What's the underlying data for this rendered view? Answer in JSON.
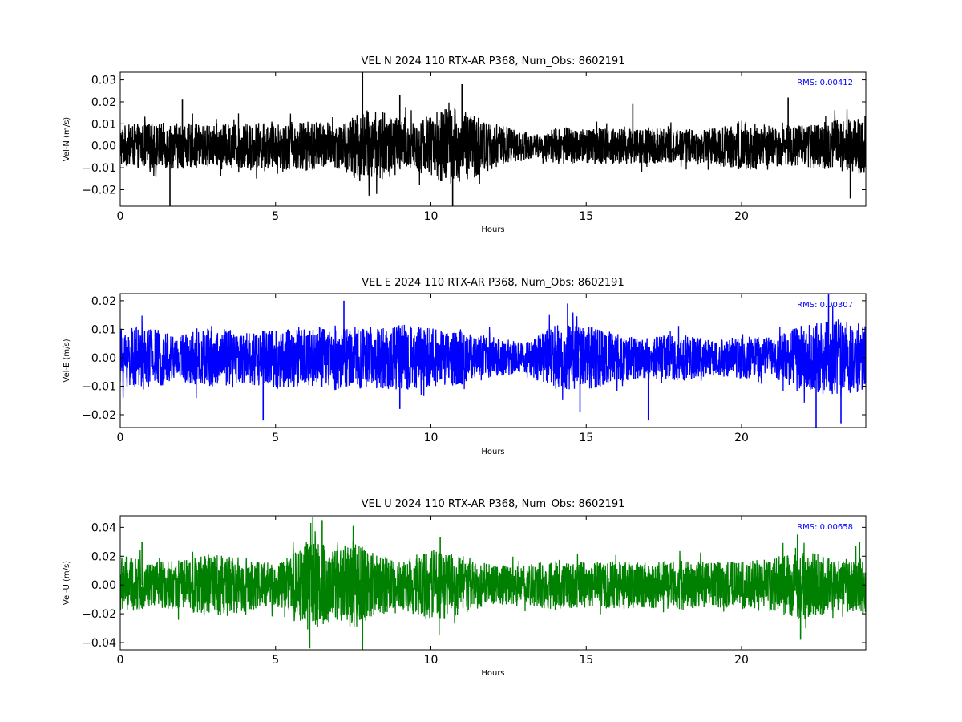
{
  "chart_data": [
    {
      "type": "line",
      "title": "VEL N 2024 110 RTX-AR  P368, Num_Obs: 8602191",
      "xlabel": "Hours",
      "ylabel": "Vel-N (m/s)",
      "xlim": [
        0,
        24
      ],
      "ylim": [
        -0.0275,
        0.0335
      ],
      "xticks": [
        0,
        5,
        10,
        15,
        20
      ],
      "yticks": [
        -0.02,
        -0.01,
        0.0,
        0.01,
        0.02,
        0.03
      ],
      "ytick_labels": [
        "−0.02",
        "−0.01",
        "0.00",
        "0.01",
        "0.02",
        "0.03"
      ],
      "xtick_labels": [
        "0",
        "5",
        "10",
        "15",
        "20"
      ],
      "color": "#000000",
      "annotation": "RMS:  0.00412",
      "annotation_color": "#0000ff",
      "series": [
        {
          "values_desc": "noise envelope (hours, typical max abs)",
          "envelope": [
            [
              0,
              0.009
            ],
            [
              1,
              0.01
            ],
            [
              2,
              0.01
            ],
            [
              3,
              0.009
            ],
            [
              4,
              0.01
            ],
            [
              5,
              0.01
            ],
            [
              6,
              0.011
            ],
            [
              7,
              0.01
            ],
            [
              7.4,
              0.011
            ],
            [
              7.6,
              0.016
            ],
            [
              8.5,
              0.015
            ],
            [
              9.5,
              0.011
            ],
            [
              10.5,
              0.017
            ],
            [
              11.2,
              0.015
            ],
            [
              12,
              0.01
            ],
            [
              12.8,
              0.007
            ],
            [
              13.5,
              0.005
            ],
            [
              14,
              0.008
            ],
            [
              15,
              0.008
            ],
            [
              16,
              0.008
            ],
            [
              17,
              0.008
            ],
            [
              18,
              0.007
            ],
            [
              19,
              0.008
            ],
            [
              20,
              0.011
            ],
            [
              21,
              0.009
            ],
            [
              22,
              0.009
            ],
            [
              23,
              0.011
            ],
            [
              24,
              0.013
            ]
          ],
          "spikes": [
            [
              1.6,
              -0.0275
            ],
            [
              7.8,
              0.0335
            ],
            [
              10.7,
              -0.0275
            ],
            [
              11.0,
              0.028
            ],
            [
              2.0,
              0.021
            ],
            [
              9.0,
              0.023
            ],
            [
              23.5,
              -0.024
            ],
            [
              16.5,
              0.019
            ],
            [
              21.5,
              0.022
            ]
          ]
        }
      ]
    },
    {
      "type": "line",
      "title": "VEL E 2024 110 RTX-AR  P368, Num_Obs: 8602191",
      "xlabel": "Hours",
      "ylabel": "Vel-E (m/s)",
      "xlim": [
        0,
        24
      ],
      "ylim": [
        -0.0245,
        0.0225
      ],
      "xticks": [
        0,
        5,
        10,
        15,
        20
      ],
      "yticks": [
        -0.02,
        -0.01,
        0.0,
        0.01,
        0.02
      ],
      "ytick_labels": [
        "−0.02",
        "−0.01",
        "0.00",
        "0.01",
        "0.02"
      ],
      "xtick_labels": [
        "0",
        "5",
        "10",
        "15",
        "20"
      ],
      "color": "#0000ff",
      "annotation": "RMS:  0.00307",
      "annotation_color": "#0000ff",
      "series": [
        {
          "values_desc": "noise envelope (hours, typical max abs)",
          "envelope": [
            [
              0,
              0.01
            ],
            [
              1,
              0.01
            ],
            [
              2,
              0.008
            ],
            [
              2.5,
              0.01
            ],
            [
              3,
              0.01
            ],
            [
              4,
              0.009
            ],
            [
              5,
              0.01
            ],
            [
              6,
              0.01
            ],
            [
              7,
              0.011
            ],
            [
              8,
              0.01
            ],
            [
              9,
              0.011
            ],
            [
              10,
              0.01
            ],
            [
              11,
              0.009
            ],
            [
              12,
              0.007
            ],
            [
              13,
              0.005
            ],
            [
              14,
              0.011
            ],
            [
              15,
              0.011
            ],
            [
              16,
              0.008
            ],
            [
              17,
              0.007
            ],
            [
              18,
              0.008
            ],
            [
              19,
              0.006
            ],
            [
              20,
              0.007
            ],
            [
              21,
              0.007
            ],
            [
              22,
              0.011
            ],
            [
              23,
              0.013
            ],
            [
              24,
              0.011
            ]
          ],
          "spikes": [
            [
              4.6,
              -0.022
            ],
            [
              7.2,
              0.02
            ],
            [
              14.4,
              0.019
            ],
            [
              14.8,
              -0.019
            ],
            [
              17.0,
              -0.022
            ],
            [
              22.4,
              -0.0245
            ],
            [
              22.8,
              0.0225
            ],
            [
              23.2,
              -0.023
            ],
            [
              9.0,
              -0.018
            ]
          ]
        }
      ]
    },
    {
      "type": "line",
      "title": "VEL U 2024 110 RTX-AR  P368, Num_Obs: 8602191",
      "xlabel": "Hours",
      "ylabel": "Vel-U (m/s)",
      "xlim": [
        0,
        24
      ],
      "ylim": [
        -0.045,
        0.048
      ],
      "xticks": [
        0,
        5,
        10,
        15,
        20
      ],
      "yticks": [
        -0.04,
        -0.02,
        0.0,
        0.02,
        0.04
      ],
      "ytick_labels": [
        "−0.04",
        "−0.02",
        "0.00",
        "0.02",
        "0.04"
      ],
      "xtick_labels": [
        "0",
        "5",
        "10",
        "15",
        "20"
      ],
      "color": "#008000",
      "annotation": "RMS:  0.00658",
      "annotation_color": "#0000ff",
      "series": [
        {
          "values_desc": "noise envelope (hours, typical max abs)",
          "envelope": [
            [
              0,
              0.02
            ],
            [
              1,
              0.015
            ],
            [
              2,
              0.017
            ],
            [
              3,
              0.021
            ],
            [
              4,
              0.018
            ],
            [
              5,
              0.014
            ],
            [
              5.5,
              0.02
            ],
            [
              6,
              0.03
            ],
            [
              7,
              0.024
            ],
            [
              7.5,
              0.03
            ],
            [
              8,
              0.022
            ],
            [
              9,
              0.016
            ],
            [
              10,
              0.024
            ],
            [
              11,
              0.02
            ],
            [
              12,
              0.013
            ],
            [
              13,
              0.013
            ],
            [
              14,
              0.017
            ],
            [
              15,
              0.015
            ],
            [
              16,
              0.016
            ],
            [
              17,
              0.015
            ],
            [
              18,
              0.017
            ],
            [
              19,
              0.015
            ],
            [
              20,
              0.016
            ],
            [
              21,
              0.018
            ],
            [
              22,
              0.024
            ],
            [
              23,
              0.017
            ],
            [
              24,
              0.02
            ]
          ],
          "spikes": [
            [
              6.2,
              0.047
            ],
            [
              6.1,
              -0.044
            ],
            [
              7.8,
              -0.045
            ],
            [
              6.5,
              0.045
            ],
            [
              7.5,
              0.041
            ],
            [
              21.8,
              0.035
            ],
            [
              21.9,
              -0.038
            ],
            [
              10.3,
              0.033
            ],
            [
              0.7,
              0.03
            ],
            [
              23.8,
              0.03
            ]
          ]
        }
      ]
    }
  ]
}
